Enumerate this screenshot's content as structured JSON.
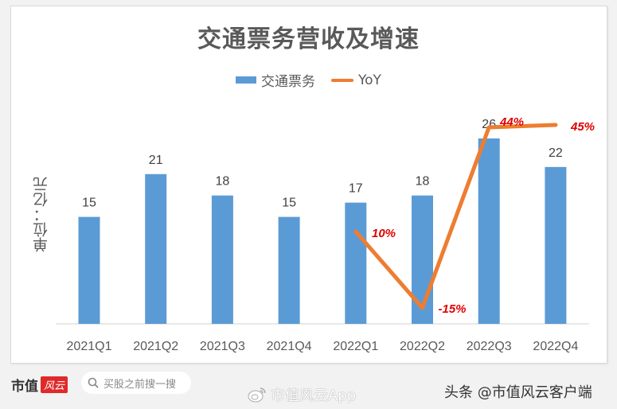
{
  "chart_data": {
    "type": "bar",
    "title": "交通票务营收及增速",
    "ylabel": "单位：亿元",
    "xlabel": "",
    "categories": [
      "2021Q1",
      "2021Q2",
      "2021Q3",
      "2021Q4",
      "2022Q1",
      "2022Q2",
      "2022Q3",
      "2022Q4"
    ],
    "series": [
      {
        "name": "交通票务",
        "type": "bar",
        "color": "#5b9bd5",
        "values": [
          15,
          21,
          18,
          15,
          17,
          18,
          26,
          22
        ]
      },
      {
        "name": "YoY",
        "type": "line",
        "color": "#ed7d31",
        "values": [
          null,
          null,
          null,
          null,
          0.1,
          -0.15,
          0.44,
          0.45
        ],
        "labels": [
          "",
          "",
          "",
          "",
          "10%",
          "-15%",
          "44%",
          "45%"
        ],
        "label_color": "#e00000"
      }
    ],
    "legend_position": "top",
    "grid": false
  },
  "legend": {
    "bar_label": "交通票务",
    "line_label": "YoY"
  },
  "footer": {
    "logo_text": "市值",
    "logo_badge": "风云",
    "search_placeholder": "买股之前搜一搜",
    "weibo_text": "市值风云App",
    "toutiao_text": "头条 @市值风云客户端"
  }
}
